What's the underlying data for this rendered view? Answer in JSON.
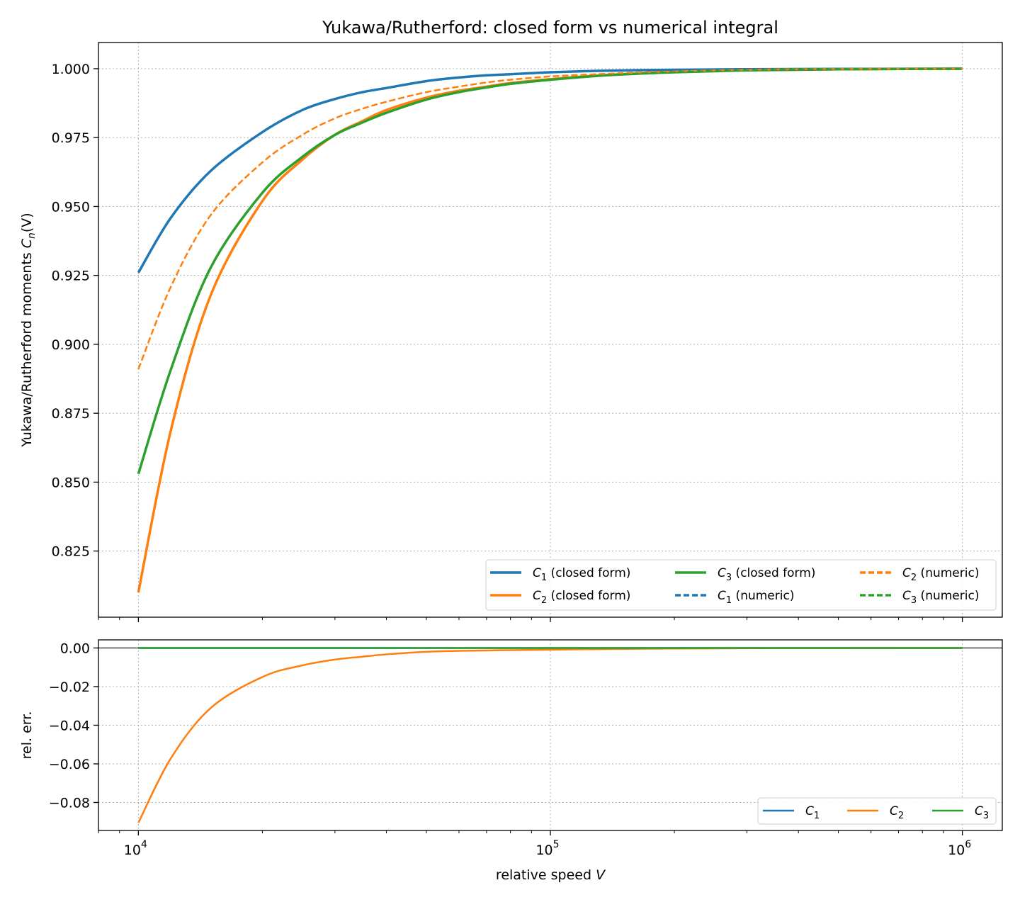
{
  "chart_data": [
    {
      "type": "line",
      "title": "Yukawa/Rutherford: closed form vs numerical integral",
      "xlabel": "",
      "ylabel": "Yukawa/Rutherford moments C_n(V)",
      "ylabel_main": "Yukawa/Rutherford moments ",
      "ylabel_math": "C",
      "ylabel_sub": "n",
      "ylabel_tail": "(V)",
      "xscale": "log",
      "xlim": [
        8000,
        1250000
      ],
      "ylim": [
        0.801,
        1.0095
      ],
      "yticks": [
        0.825,
        0.85,
        0.875,
        0.9,
        0.925,
        0.95,
        0.975,
        1.0
      ],
      "ytick_labels": [
        "0.825",
        "0.850",
        "0.875",
        "0.900",
        "0.925",
        "0.950",
        "0.975",
        "1.000"
      ],
      "grid": true,
      "legend": {
        "placement": "lower-right",
        "columns": 3,
        "entries": [
          {
            "math": "C",
            "sub": "1",
            "text": " (closed form)",
            "color": "#1f77b4",
            "style": "solid"
          },
          {
            "math": "C",
            "sub": "2",
            "text": " (closed form)",
            "color": "#ff7f0e",
            "style": "solid"
          },
          {
            "math": "C",
            "sub": "3",
            "text": " (closed form)",
            "color": "#2ca02c",
            "style": "solid"
          },
          {
            "math": "C",
            "sub": "1",
            "text": " (numeric)",
            "color": "#1f77b4",
            "style": "dashed"
          },
          {
            "math": "C",
            "sub": "2",
            "text": " (numeric)",
            "color": "#ff7f0e",
            "style": "dashed"
          },
          {
            "math": "C",
            "sub": "3",
            "text": " (numeric)",
            "color": "#2ca02c",
            "style": "dashed"
          }
        ]
      },
      "x": [
        10000,
        12000,
        15000,
        20000,
        25000,
        30000,
        35000,
        40000,
        50000,
        60000,
        70000,
        80000,
        100000,
        130000,
        170000,
        200000,
        300000,
        500000,
        1000000
      ],
      "series": [
        {
          "name": "C_1 (closed form)",
          "color": "#1f77b4",
          "style": "solid",
          "width": 3.5,
          "values": [
            0.926,
            0.946,
            0.963,
            0.977,
            0.985,
            0.989,
            0.9915,
            0.993,
            0.9955,
            0.9968,
            0.9976,
            0.998,
            0.9987,
            0.9992,
            0.9995,
            0.9996,
            0.9998,
            0.99993,
            1.0
          ]
        },
        {
          "name": "C_2 (closed form)",
          "color": "#ff7f0e",
          "style": "solid",
          "width": 3.5,
          "values": [
            0.81,
            0.869,
            0.918,
            0.952,
            0.967,
            0.976,
            0.981,
            0.985,
            0.9895,
            0.992,
            0.9935,
            0.9948,
            0.9962,
            0.9975,
            0.9984,
            0.9988,
            0.9995,
            0.9998,
            1.0
          ]
        },
        {
          "name": "C_3 (closed form)",
          "color": "#2ca02c",
          "style": "solid",
          "width": 3.5,
          "values": [
            0.853,
            0.891,
            0.928,
            0.955,
            0.968,
            0.976,
            0.9805,
            0.984,
            0.9888,
            0.9915,
            0.9932,
            0.9945,
            0.996,
            0.9974,
            0.9983,
            0.9987,
            0.9994,
            0.9998,
            1.0
          ]
        },
        {
          "name": "C_1 (numeric)",
          "color": "#1f77b4",
          "style": "dashed",
          "width": 2.5,
          "values": [
            0.926,
            0.946,
            0.963,
            0.977,
            0.985,
            0.989,
            0.9915,
            0.993,
            0.9955,
            0.9968,
            0.9976,
            0.998,
            0.9987,
            0.9992,
            0.9995,
            0.9996,
            0.9998,
            0.99993,
            1.0
          ]
        },
        {
          "name": "C_2 (numeric)",
          "color": "#ff7f0e",
          "style": "dashed",
          "width": 2.5,
          "values": [
            0.891,
            0.921,
            0.947,
            0.966,
            0.976,
            0.982,
            0.9855,
            0.988,
            0.9915,
            0.9935,
            0.995,
            0.996,
            0.9972,
            0.998,
            0.9987,
            0.999,
            0.9996,
            0.9999,
            1.0
          ]
        },
        {
          "name": "C_3 (numeric)",
          "color": "#2ca02c",
          "style": "dashed",
          "width": 2.5,
          "values": [
            0.853,
            0.891,
            0.928,
            0.955,
            0.968,
            0.976,
            0.9805,
            0.984,
            0.9888,
            0.9915,
            0.9932,
            0.9945,
            0.996,
            0.9974,
            0.9983,
            0.9987,
            0.9994,
            0.9998,
            1.0
          ]
        }
      ]
    },
    {
      "type": "line",
      "title": "",
      "xlabel": "relative speed V",
      "xlabel_main": "relative speed ",
      "xlabel_math": "V",
      "ylabel": "rel. err.",
      "xscale": "log",
      "xlim": [
        8000,
        1250000
      ],
      "ylim": [
        -0.0945,
        0.0042
      ],
      "yticks": [
        -0.08,
        -0.06,
        -0.04,
        -0.02,
        0.0
      ],
      "ytick_labels": [
        "−0.08",
        "−0.06",
        "−0.04",
        "−0.02",
        "0.00"
      ],
      "xticks": [
        10000,
        100000,
        1000000
      ],
      "xtick_bases": [
        "10",
        "10",
        "10"
      ],
      "xtick_exps": [
        "4",
        "5",
        "6"
      ],
      "grid": true,
      "reference_line_y": 0,
      "legend": {
        "placement": "lower-right",
        "columns": 3,
        "entries": [
          {
            "math": "C",
            "sub": "1",
            "text": "",
            "color": "#1f77b4",
            "style": "solid"
          },
          {
            "math": "C",
            "sub": "2",
            "text": "",
            "color": "#ff7f0e",
            "style": "solid"
          },
          {
            "math": "C",
            "sub": "3",
            "text": "",
            "color": "#2ca02c",
            "style": "solid"
          }
        ]
      },
      "x": [
        10000,
        12000,
        15000,
        20000,
        25000,
        30000,
        35000,
        40000,
        50000,
        60000,
        70000,
        80000,
        100000,
        130000,
        170000,
        200000,
        300000,
        500000,
        1000000
      ],
      "series": [
        {
          "name": "C_1",
          "color": "#1f77b4",
          "style": "solid",
          "width": 2.5,
          "values": [
            0,
            0,
            0,
            0,
            0,
            0,
            0,
            0,
            0,
            0,
            0,
            0,
            0,
            0,
            0,
            0,
            0,
            0,
            0
          ]
        },
        {
          "name": "C_2",
          "color": "#ff7f0e",
          "style": "solid",
          "width": 2.5,
          "values": [
            -0.0905,
            -0.057,
            -0.031,
            -0.015,
            -0.009,
            -0.006,
            -0.0045,
            -0.0033,
            -0.002,
            -0.0015,
            -0.0013,
            -0.0011,
            -0.0009,
            -0.0006,
            -0.0004,
            -0.0003,
            -0.00015,
            -5e-05,
            0
          ]
        },
        {
          "name": "C_3",
          "color": "#2ca02c",
          "style": "solid",
          "width": 2.5,
          "values": [
            0,
            0,
            0,
            0,
            0,
            0,
            0,
            0,
            0,
            0,
            0,
            0,
            0,
            0,
            0,
            0,
            0,
            0,
            0
          ]
        }
      ]
    }
  ]
}
